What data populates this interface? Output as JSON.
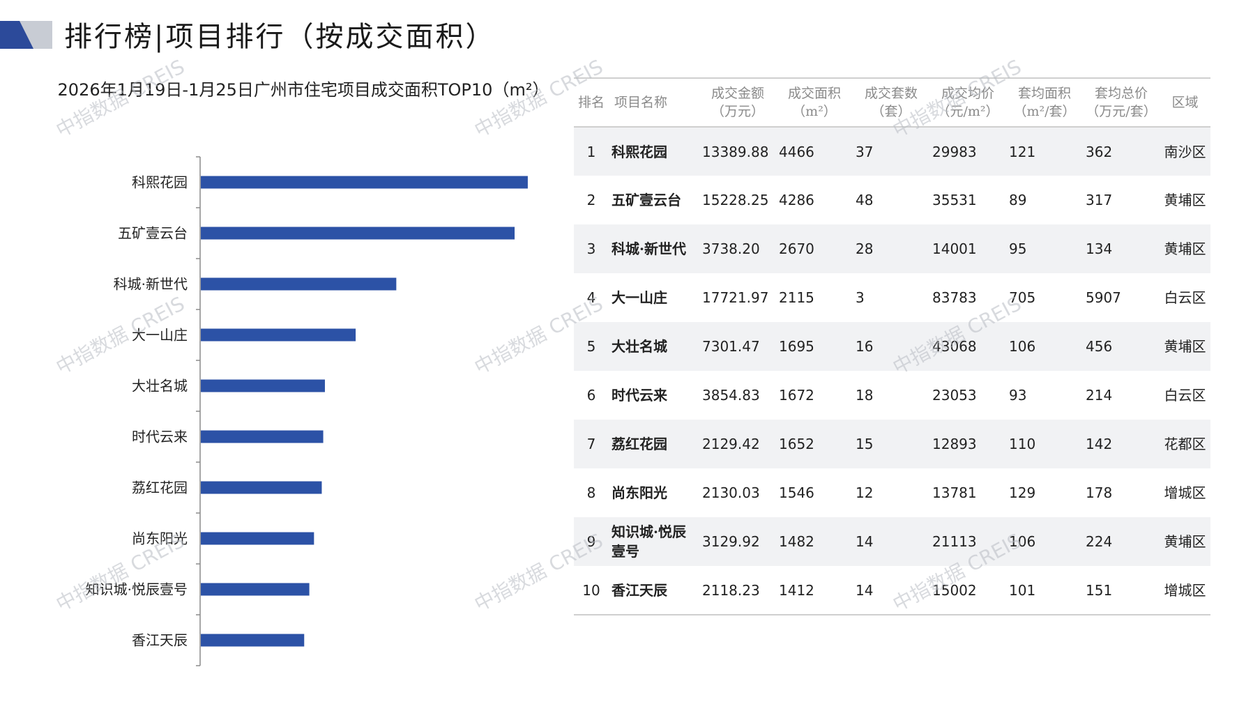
{
  "page_title": "排行榜|项目排行（按成交面积）",
  "watermark_text": "中指数据 CREIS",
  "colors": {
    "bar": "#2c52a6",
    "accent_dark": "#2c4a9a",
    "accent_light": "#c8ccd4"
  },
  "chart_data": {
    "type": "bar",
    "orientation": "horizontal",
    "title": "2026年1月19日-1月25日广州市住宅项目成交面积TOP10（m²）",
    "categories": [
      "科熙花园",
      "五矿壹云台",
      "科城·新世代",
      "大一山庄",
      "大壮名城",
      "时代云来",
      "荔红花园",
      "尚东阳光",
      "知识城·悦辰壹号",
      "香江天辰"
    ],
    "values": [
      4466,
      4286,
      2670,
      2115,
      1695,
      1672,
      1652,
      1546,
      1482,
      1412
    ],
    "xlim": [
      0,
      5000
    ],
    "grid": false
  },
  "table": {
    "headers": [
      {
        "line1": "排名",
        "line2": ""
      },
      {
        "line1": "项目名称",
        "line2": ""
      },
      {
        "line1": "成交金额",
        "line2": "（万元）"
      },
      {
        "line1": "成交面积",
        "line2": "（m²）"
      },
      {
        "line1": "成交套数",
        "line2": "（套）"
      },
      {
        "line1": "成交均价",
        "line2": "（元/m²）"
      },
      {
        "line1": "套均面积",
        "line2": "（m²/套）"
      },
      {
        "line1": "套均总价",
        "line2": "（万元/套）"
      },
      {
        "line1": "区域",
        "line2": ""
      }
    ],
    "rows": [
      [
        "1",
        "科熙花园",
        "13389.88",
        "4466",
        "37",
        "29983",
        "121",
        "362",
        "南沙区"
      ],
      [
        "2",
        "五矿壹云台",
        "15228.25",
        "4286",
        "48",
        "35531",
        "89",
        "317",
        "黄埔区"
      ],
      [
        "3",
        "科城·新世代",
        "3738.20",
        "2670",
        "28",
        "14001",
        "95",
        "134",
        "黄埔区"
      ],
      [
        "4",
        "大一山庄",
        "17721.97",
        "2115",
        "3",
        "83783",
        "705",
        "5907",
        "白云区"
      ],
      [
        "5",
        "大壮名城",
        "7301.47",
        "1695",
        "16",
        "43068",
        "106",
        "456",
        "黄埔区"
      ],
      [
        "6",
        "时代云来",
        "3854.83",
        "1672",
        "18",
        "23053",
        "93",
        "214",
        "白云区"
      ],
      [
        "7",
        "荔红花园",
        "2129.42",
        "1652",
        "15",
        "12893",
        "110",
        "142",
        "花都区"
      ],
      [
        "8",
        "尚东阳光",
        "2130.03",
        "1546",
        "12",
        "13781",
        "129",
        "178",
        "增城区"
      ],
      [
        "9",
        "知识城·悦辰壹号",
        "3129.92",
        "1482",
        "14",
        "21113",
        "106",
        "224",
        "黄埔区"
      ],
      [
        "10",
        "香江天辰",
        "2118.23",
        "1412",
        "14",
        "15002",
        "101",
        "151",
        "增城区"
      ]
    ]
  }
}
